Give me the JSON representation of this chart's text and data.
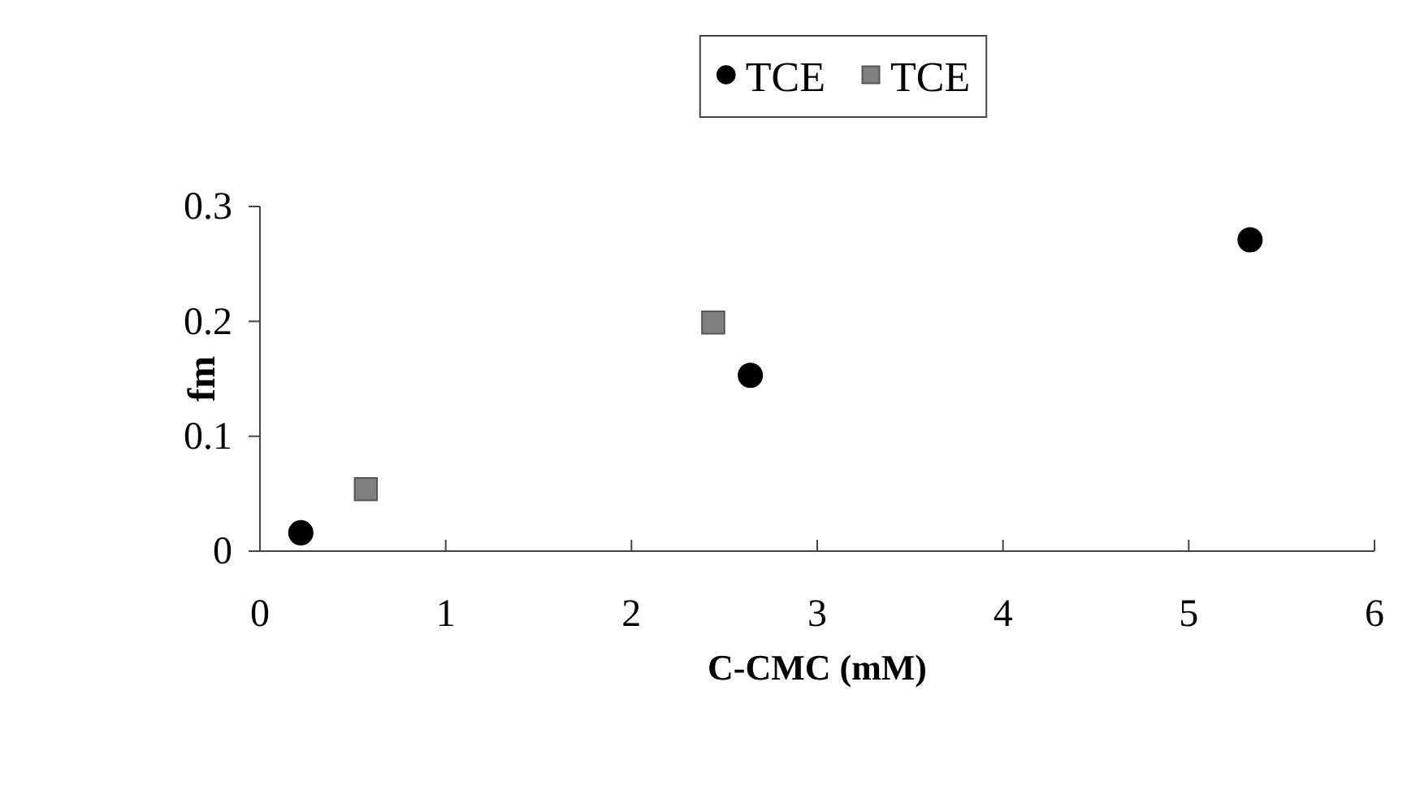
{
  "chart_data": {
    "type": "scatter",
    "xlabel": "C-CMC (mM)",
    "ylabel": "fm",
    "xlim": [
      0,
      6
    ],
    "xticks": [
      0,
      1,
      2,
      3,
      4,
      5,
      6
    ],
    "ylim": [
      0,
      0.3
    ],
    "yticks": [
      0,
      0.1,
      0.2,
      0.3
    ],
    "grid": false,
    "legend": "top",
    "series": [
      {
        "name": "TCE",
        "color": "#000000",
        "marker": "circle",
        "x": [
          0.22,
          2.64,
          5.33
        ],
        "values": [
          0.016,
          0.153,
          0.271
        ]
      },
      {
        "name": "TCE",
        "color": "#808080",
        "marker": "square",
        "x": [
          0.57,
          2.44
        ],
        "values": [
          0.054,
          0.199
        ]
      }
    ]
  }
}
